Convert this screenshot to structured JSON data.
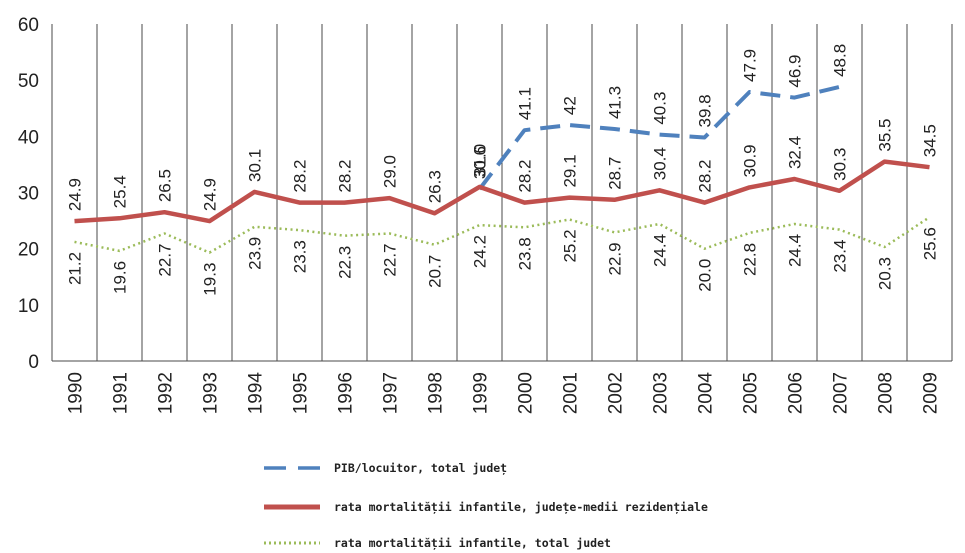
{
  "chart_data": {
    "type": "line",
    "categories": [
      "1990",
      "1991",
      "1992",
      "1993",
      "1994",
      "1995",
      "1996",
      "1997",
      "1998",
      "1999",
      "2000",
      "2001",
      "2002",
      "2003",
      "2004",
      "2005",
      "2006",
      "2007",
      "2008",
      "2009"
    ],
    "ylim": [
      0,
      60
    ],
    "yticks": [
      0,
      10,
      20,
      30,
      40,
      50,
      60
    ],
    "grid": "vertical lines at categories",
    "legend_position": "bottom",
    "series": [
      {
        "name": "PIB/locuitor, total județ",
        "color": "#4f81bd",
        "style": "dashed",
        "values": [
          null,
          null,
          null,
          null,
          null,
          null,
          null,
          null,
          null,
          30.6,
          41.1,
          42,
          41.3,
          40.3,
          39.8,
          47.9,
          46.9,
          48.8,
          null,
          null
        ],
        "labels": [
          "",
          "",
          "",
          "",
          "",
          "",
          "",
          "",
          "",
          "30.6",
          "41.1",
          "42",
          "41.3",
          "40.3",
          "39.8",
          "47.9",
          "46.9",
          "48.8",
          "",
          ""
        ]
      },
      {
        "name": "rata mortalității infantile, județe-medii rezidențiale",
        "color": "#c0504d",
        "style": "solid",
        "values": [
          24.9,
          25.4,
          26.5,
          24.9,
          30.1,
          28.2,
          28.2,
          29.0,
          26.3,
          31.0,
          28.2,
          29.1,
          28.7,
          30.4,
          28.2,
          30.9,
          32.4,
          30.3,
          35.5,
          34.5
        ],
        "labels": [
          "24.9",
          "25.4",
          "26.5",
          "24.9",
          "30.1",
          "28.2",
          "28.2",
          "29.0",
          "26.3",
          "31.0",
          "28.2",
          "29.1",
          "28.7",
          "30.4",
          "28.2",
          "30.9",
          "32.4",
          "30.3",
          "35.5",
          "34.5"
        ]
      },
      {
        "name": "rata mortalității infantile, total județ",
        "color": "#9bbb59",
        "style": "dotted",
        "values": [
          21.2,
          19.6,
          22.7,
          19.3,
          23.9,
          23.3,
          22.3,
          22.7,
          20.7,
          24.2,
          23.8,
          25.2,
          22.9,
          24.4,
          20.0,
          22.8,
          24.4,
          23.4,
          20.3,
          25.6
        ],
        "labels": [
          "21.2",
          "19.6",
          "22.7",
          "19.3",
          "23.9",
          "23.3",
          "22.3",
          "22.7",
          "20.7",
          "24.2",
          "23.8",
          "25.2",
          "22.9",
          "24.4",
          "20.0",
          "22.8",
          "24.4",
          "23.4",
          "20.3",
          "25.6"
        ]
      }
    ]
  },
  "legend": {
    "items": [
      {
        "label": "PIB/locuitor, total județ"
      },
      {
        "label": "rata mortalității infantile, județe-medii rezidențiale"
      },
      {
        "label": "rata mortalității infantile, total judet"
      }
    ]
  }
}
